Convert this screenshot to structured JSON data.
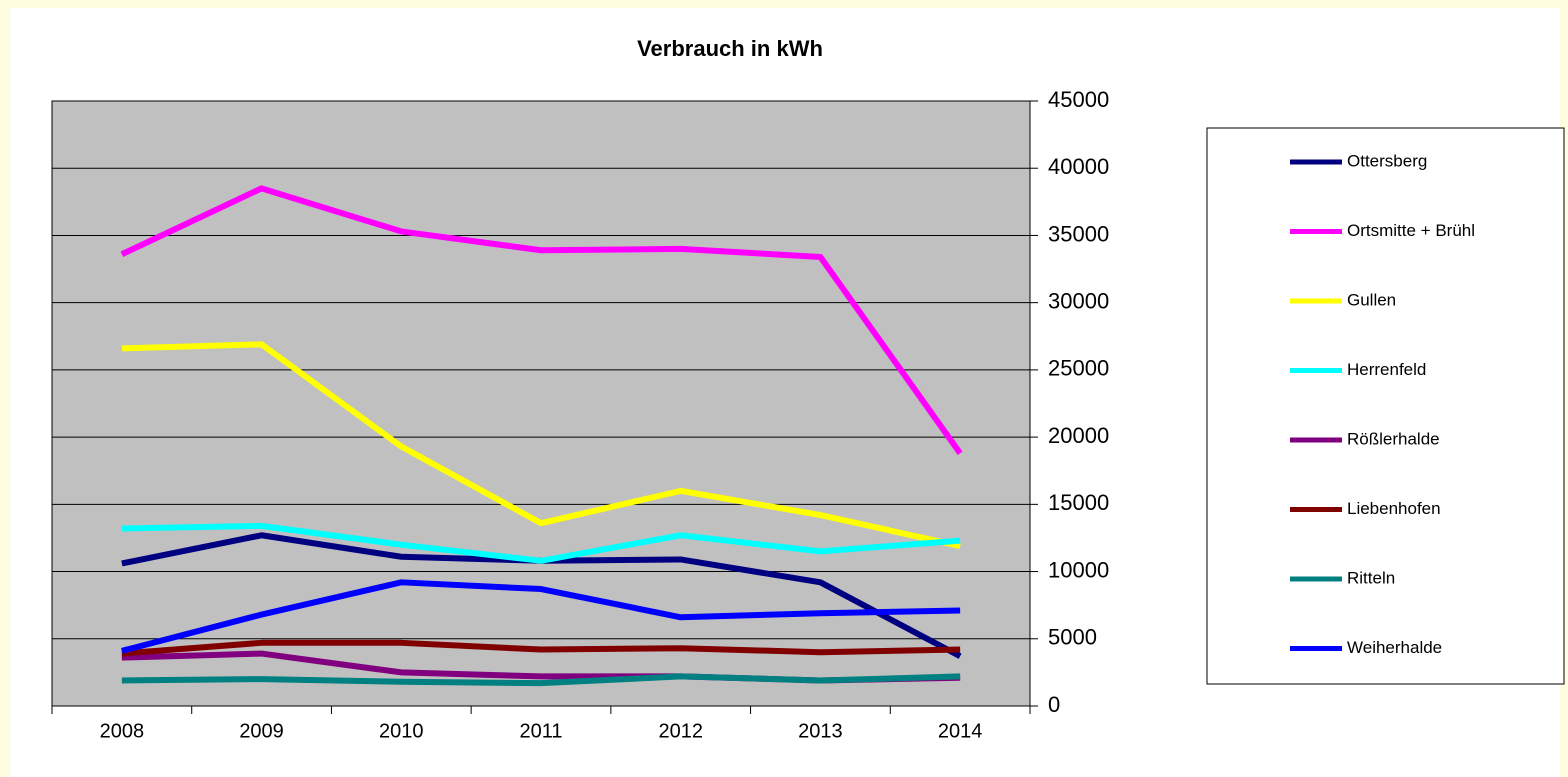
{
  "chart_data": {
    "type": "line",
    "title": "Verbrauch in kWh",
    "categories": [
      "2008",
      "2009",
      "2010",
      "2011",
      "2012",
      "2013",
      "2014"
    ],
    "ylim": [
      0,
      45000
    ],
    "yticks": [
      0,
      5000,
      10000,
      15000,
      20000,
      25000,
      30000,
      35000,
      40000,
      45000
    ],
    "grid": true,
    "legend": "right",
    "y_axis_side": "right",
    "series": [
      {
        "name": "Ottersberg",
        "color": "#000080",
        "values": [
          10600,
          12700,
          11100,
          10800,
          10900,
          9200,
          3700
        ]
      },
      {
        "name": "Ortsmitte + Brühl",
        "color": "#ff00ff",
        "values": [
          33600,
          38500,
          35300,
          33900,
          34000,
          33400,
          18800
        ]
      },
      {
        "name": "Gullen",
        "color": "#ffff00",
        "values": [
          26600,
          26900,
          19300,
          13600,
          16000,
          14200,
          11900
        ]
      },
      {
        "name": "Herrenfeld",
        "color": "#00ffff",
        "values": [
          13200,
          13400,
          12000,
          10800,
          12700,
          11500,
          12300
        ]
      },
      {
        "name": "Rößlerhalde",
        "color": "#800080",
        "values": [
          3600,
          3900,
          2500,
          2200,
          2200,
          1900,
          2100
        ]
      },
      {
        "name": "Liebenhofen",
        "color": "#800000",
        "values": [
          3900,
          4700,
          4700,
          4200,
          4300,
          4000,
          4200
        ]
      },
      {
        "name": "Ritteln",
        "color": "#008080",
        "values": [
          1900,
          2000,
          1800,
          1700,
          2200,
          1900,
          2200
        ]
      },
      {
        "name": "Weiherhalde",
        "color": "#0000ff",
        "values": [
          4100,
          6800,
          9200,
          8700,
          6600,
          6900,
          7100
        ]
      }
    ]
  }
}
